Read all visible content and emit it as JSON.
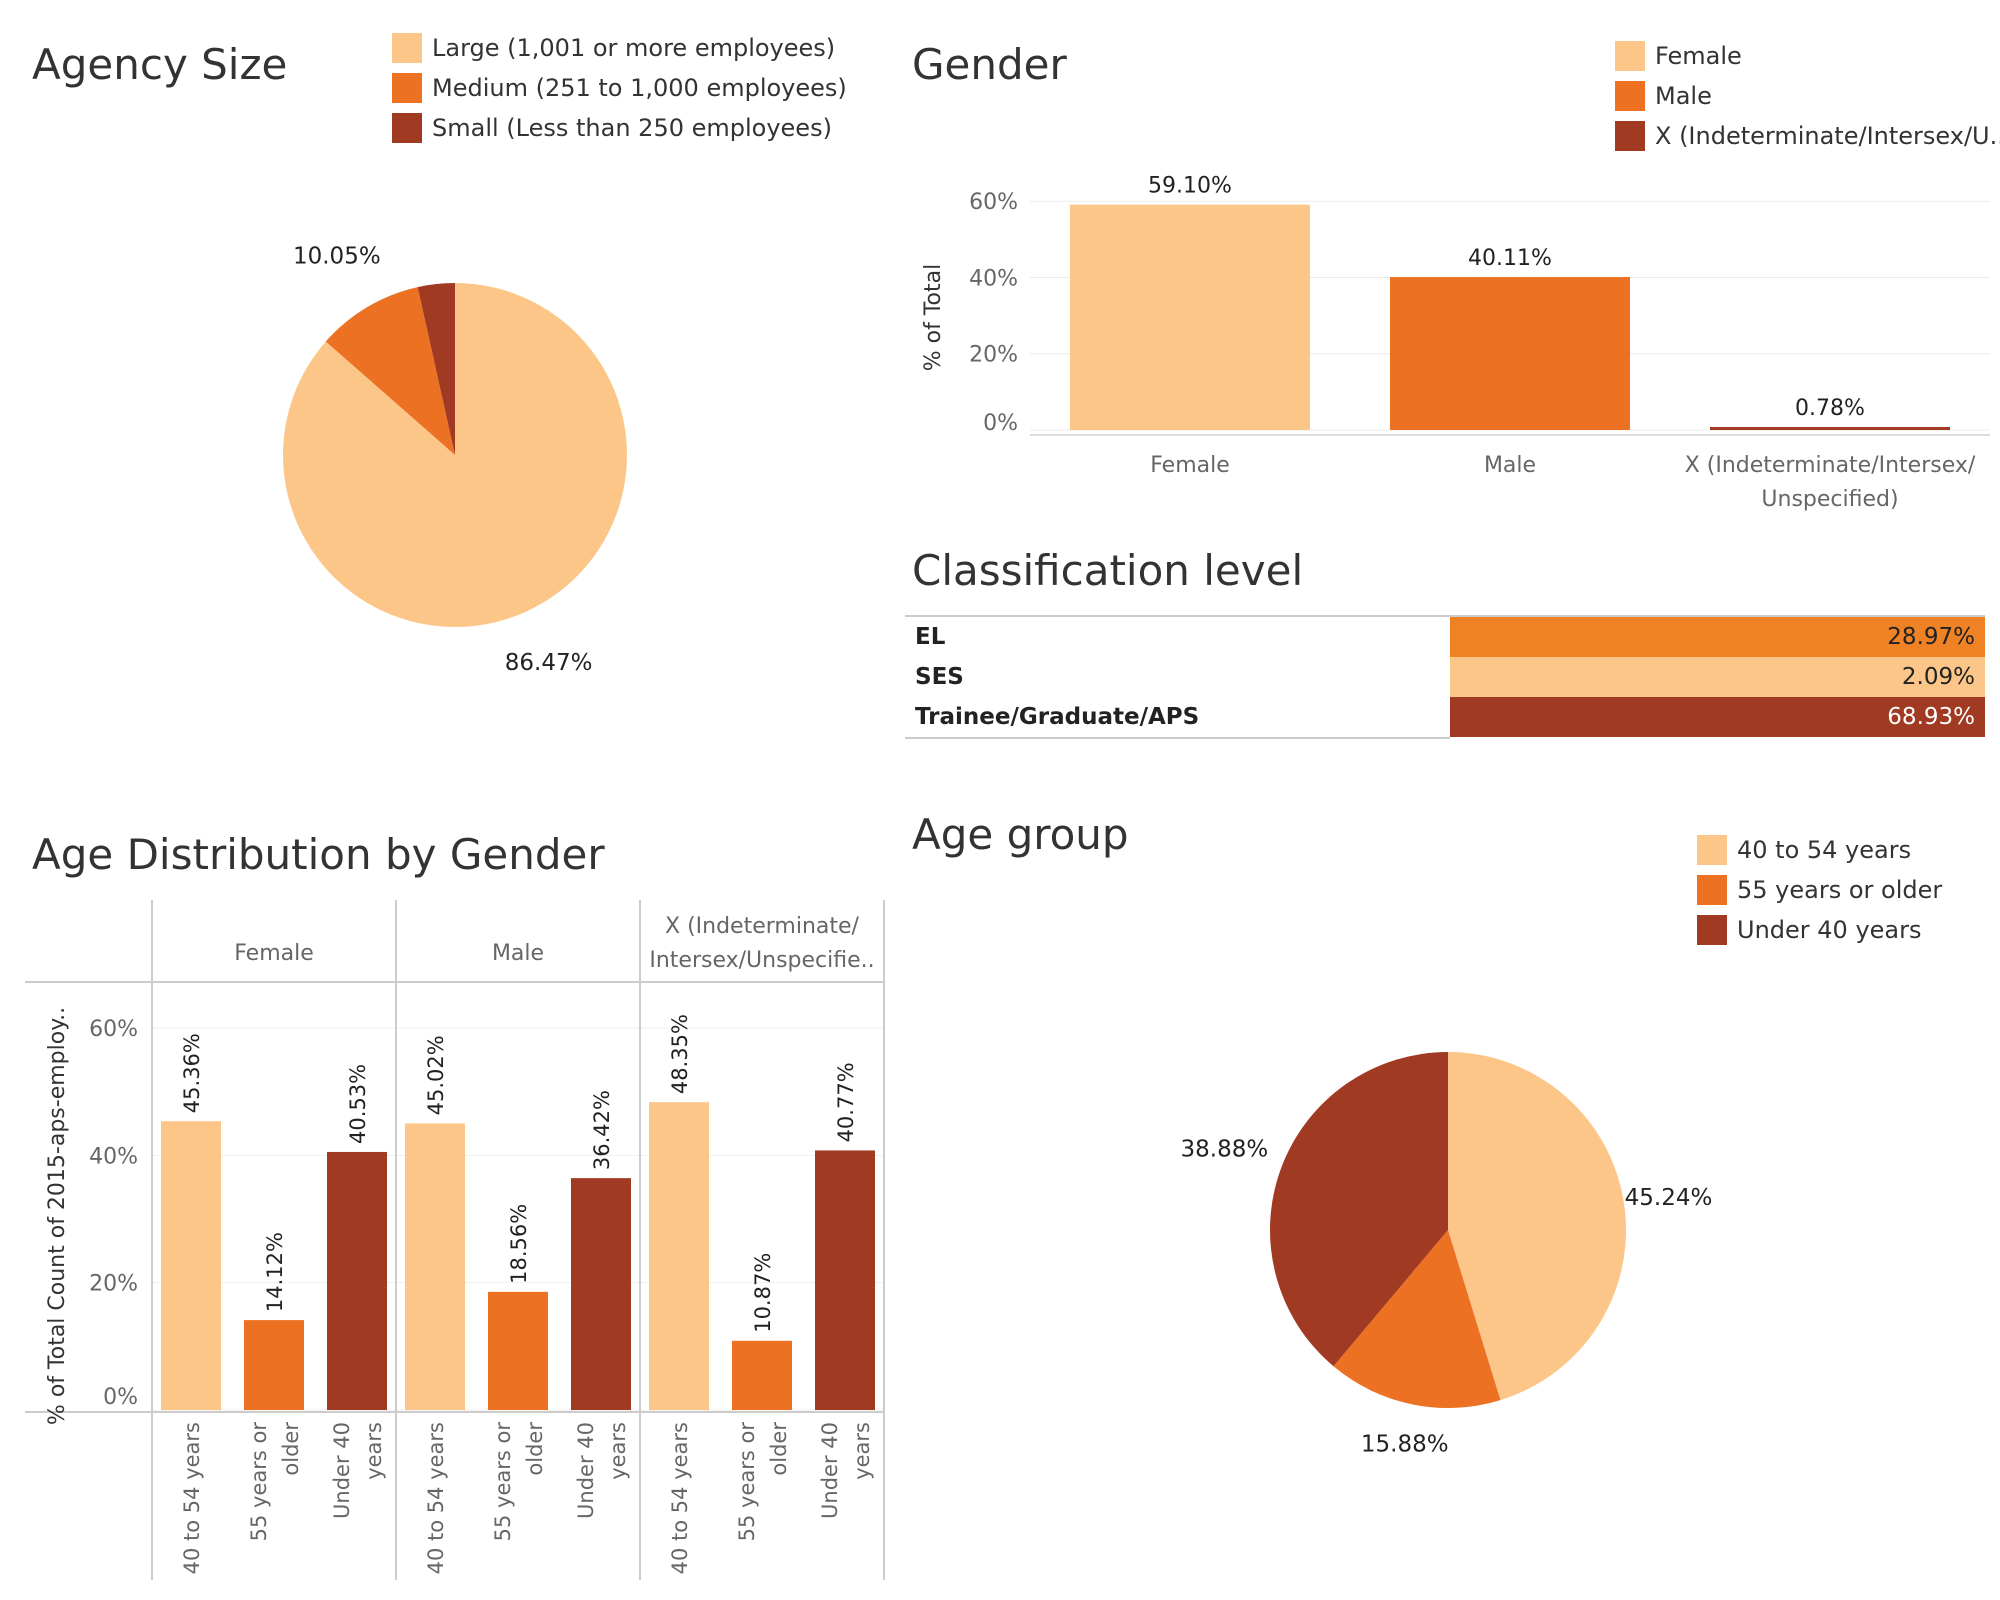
{
  "colors": {
    "light": "#FDC689",
    "mid": "#EC7123",
    "dark": "#A03A22",
    "el": "#F08226"
  },
  "agency_size": {
    "title": "Agency Size",
    "legend": [
      {
        "label": "Large (1,001 or more employees)",
        "color": "#FDC689"
      },
      {
        "label": "Medium (251 to 1,000 employees)",
        "color": "#EC7123"
      },
      {
        "label": "Small (Less than 250 employees)",
        "color": "#A03A22"
      }
    ]
  },
  "gender": {
    "title": "Gender",
    "legend": [
      {
        "label": "Female",
        "color": "#FDC689"
      },
      {
        "label": "Male",
        "color": "#EC7123"
      },
      {
        "label": "X (Indeterminate/Intersex/U..",
        "color": "#A03A22"
      }
    ]
  },
  "classification": {
    "title": "Classification level",
    "rows": [
      {
        "label": "EL",
        "value": "28.97%",
        "color": "#F08226",
        "text_color": "#222222"
      },
      {
        "label": "SES",
        "value": "2.09%",
        "color": "#FDC689",
        "text_color": "#222222"
      },
      {
        "label": "Trainee/Graduate/APS",
        "value": "68.93%",
        "color": "#A03A22",
        "text_color": "#ffffff"
      }
    ]
  },
  "age_dist": {
    "title": "Age Distribution by Gender"
  },
  "age_group": {
    "title": "Age group",
    "legend": [
      {
        "label": "40 to 54 years",
        "color": "#FDC689"
      },
      {
        "label": "55 years or older",
        "color": "#EC7123"
      },
      {
        "label": "Under 40 years",
        "color": "#A03A22"
      }
    ]
  },
  "chart_data": [
    {
      "id": "agency-size",
      "type": "pie",
      "title": "Agency Size",
      "categories": [
        "Large (1,001 or more employees)",
        "Medium (251 to 1,000 employees)",
        "Small (Less than 250 employees)"
      ],
      "values": [
        86.47,
        10.05,
        3.48
      ],
      "labels": [
        "86.47%",
        "10.05%",
        ""
      ],
      "colors": [
        "#FDC689",
        "#EC7123",
        "#A03A22"
      ]
    },
    {
      "id": "gender",
      "type": "bar",
      "title": "Gender",
      "categories": [
        "Female",
        "Male",
        "X (Indeterminate/Intersex/ Unspecified)"
      ],
      "category_lines": [
        [
          "Female"
        ],
        [
          "Male"
        ],
        [
          "X (Indeterminate/Intersex/",
          "Unspecified)"
        ]
      ],
      "values": [
        59.1,
        40.11,
        0.78
      ],
      "labels": [
        "59.10%",
        "40.11%",
        "0.78%"
      ],
      "colors": [
        "#FDC689",
        "#EC7123",
        "#A03A22"
      ],
      "ylabel": "% of Total",
      "yticks": [
        "0%",
        "20%",
        "40%",
        "60%"
      ],
      "ylim": [
        0,
        60
      ],
      "grid": true
    },
    {
      "id": "classification-level",
      "type": "table",
      "title": "Classification level",
      "categories": [
        "EL",
        "SES",
        "Trainee/Graduate/APS"
      ],
      "values": [
        28.97,
        2.09,
        68.93
      ]
    },
    {
      "id": "age-distribution-by-gender",
      "type": "bar",
      "title": "Age Distribution by Gender",
      "panels": [
        {
          "name": "Female",
          "header_lines": [
            "Female"
          ],
          "values": [
            45.36,
            14.12,
            40.53
          ],
          "labels": [
            "45.36%",
            "14.12%",
            "40.53%"
          ]
        },
        {
          "name": "Male",
          "header_lines": [
            "Male"
          ],
          "values": [
            45.02,
            18.56,
            36.42
          ],
          "labels": [
            "45.02%",
            "18.56%",
            "36.42%"
          ]
        },
        {
          "name": "X (Indeterminate/Intersex/Unspecifie..",
          "header_lines": [
            "X (Indeterminate/",
            "Intersex/Unspecifie.."
          ],
          "values": [
            48.35,
            10.87,
            40.77
          ],
          "labels": [
            "48.35%",
            "10.87%",
            "40.77%"
          ]
        }
      ],
      "categories": [
        "40 to 54 years",
        "55 years or older",
        "Under 40 years"
      ],
      "category_lines": [
        [
          "40 to 54 years"
        ],
        [
          "55 years or",
          "older"
        ],
        [
          "Under 40",
          "years"
        ]
      ],
      "colors": [
        "#FDC689",
        "#EC7123",
        "#A03A22"
      ],
      "ylabel": "% of Total Count of 2015-aps-employ..",
      "yticks": [
        "0%",
        "20%",
        "40%",
        "60%"
      ],
      "ylim": [
        0,
        60
      ],
      "grid": true
    },
    {
      "id": "age-group",
      "type": "pie",
      "title": "Age group",
      "categories": [
        "40 to 54 years",
        "55 years or older",
        "Under 40 years"
      ],
      "values": [
        45.24,
        15.88,
        38.88
      ],
      "labels": [
        "45.24%",
        "15.88%",
        "38.88%"
      ],
      "colors": [
        "#FDC689",
        "#EC7123",
        "#A03A22"
      ]
    }
  ]
}
